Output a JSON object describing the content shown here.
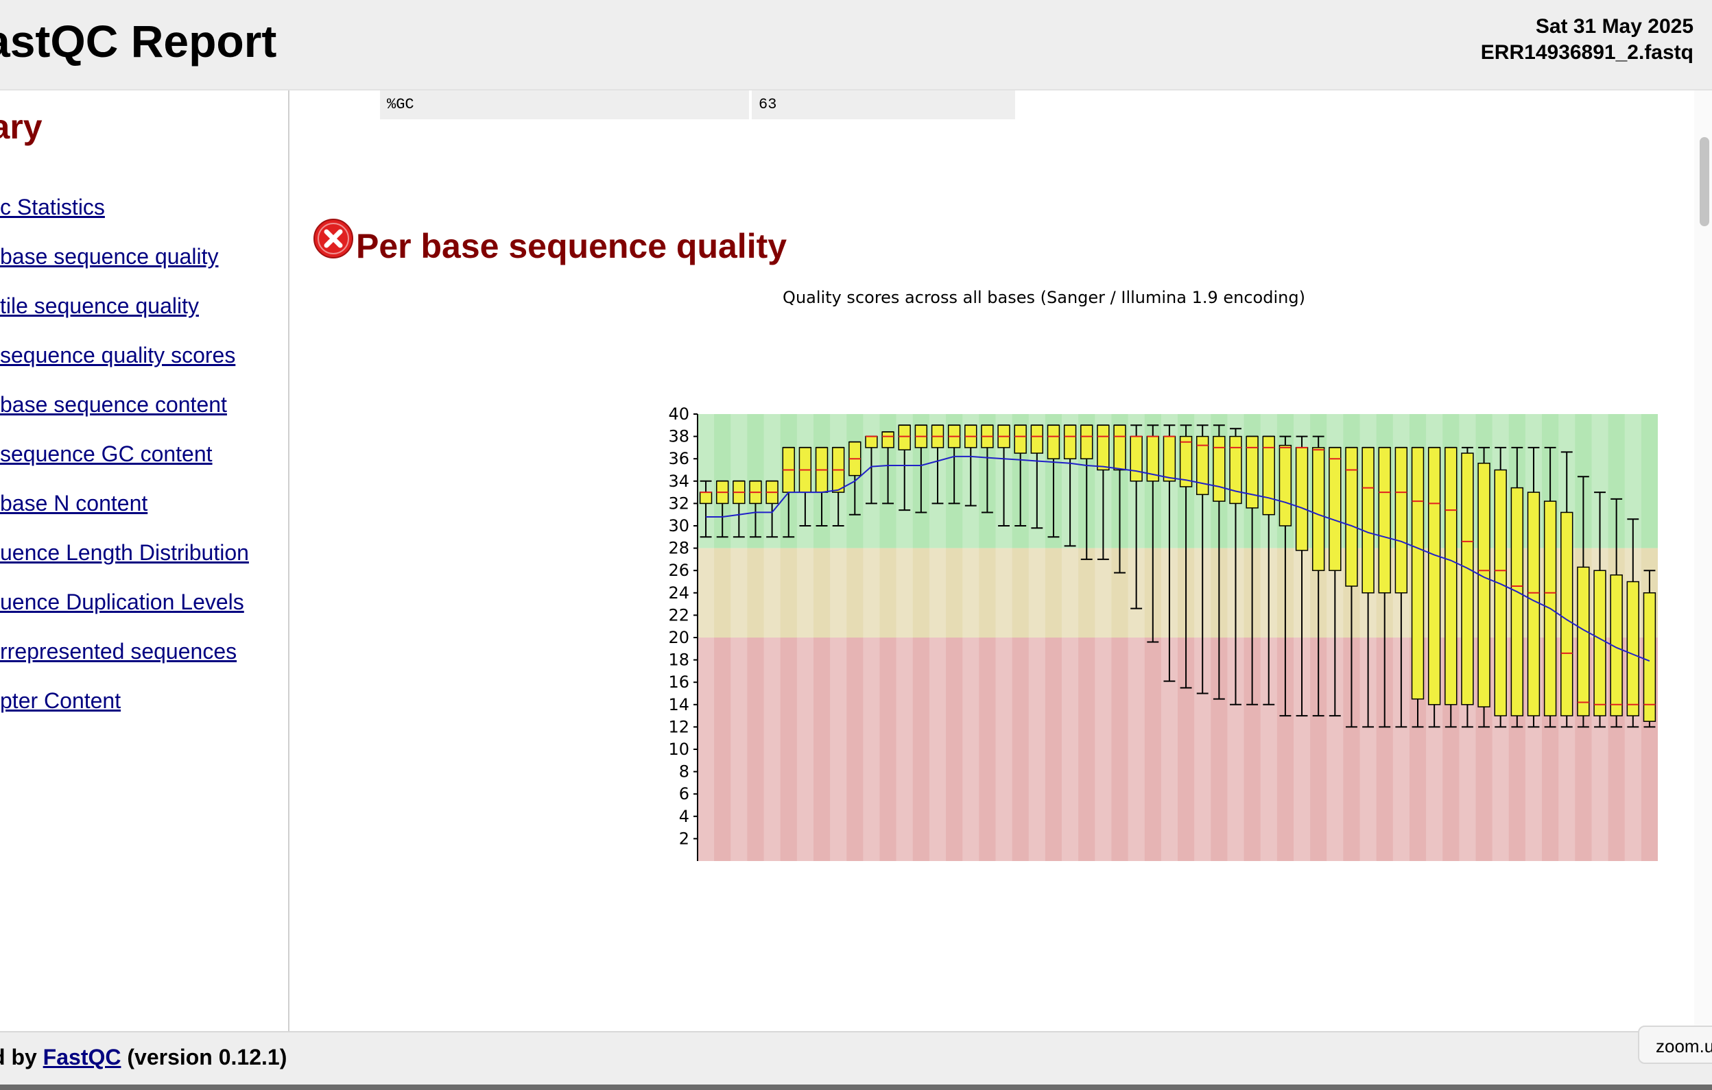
{
  "header": {
    "title": "astQC Report",
    "date": "Sat 31 May 2025",
    "filename": "ERR14936891_2.fastq"
  },
  "sidebar": {
    "heading": "nary",
    "items": [
      {
        "label": "c Statistics"
      },
      {
        "label": "base sequence quality"
      },
      {
        "label": "tile sequence quality"
      },
      {
        "label": "sequence quality scores"
      },
      {
        "label": "base sequence content"
      },
      {
        "label": "sequence GC content"
      },
      {
        "label": "base N content"
      },
      {
        "label": "uence Length Distribution"
      },
      {
        "label": "uence Duplication Levels"
      },
      {
        "label": "rrepresented sequences"
      },
      {
        "label": "pter Content"
      }
    ]
  },
  "stats_row": {
    "label": "%GC",
    "value": "63"
  },
  "section": {
    "title": "Per base sequence quality",
    "status_icon": "fail-icon",
    "status_color": "#e02020"
  },
  "chart_data": {
    "type": "box",
    "title": "Quality scores across all bases (Sanger / Illumina 1.9 encoding)",
    "xlabel": "",
    "ylabel": "",
    "ylim": [
      0,
      40
    ],
    "y_ticks": [
      2,
      4,
      6,
      8,
      10,
      12,
      14,
      16,
      18,
      20,
      22,
      24,
      26,
      28,
      30,
      32,
      34,
      36,
      38,
      40
    ],
    "zones": [
      {
        "from": 28,
        "to": 40,
        "color": "#b4e6b4"
      },
      {
        "from": 20,
        "to": 28,
        "color": "#e6dcb4"
      },
      {
        "from": 0,
        "to": 20,
        "color": "#e6b4b4"
      }
    ],
    "box_color": "#f0f040",
    "median_color": "#e02020",
    "mean_color": "#2020c8",
    "boxes": [
      {
        "low": 29,
        "q1": 32,
        "median": 33,
        "q3": 33,
        "high": 34
      },
      {
        "low": 29,
        "q1": 32,
        "median": 33,
        "q3": 34,
        "high": 34
      },
      {
        "low": 29,
        "q1": 32,
        "median": 33,
        "q3": 34,
        "high": 34
      },
      {
        "low": 29,
        "q1": 32,
        "median": 33,
        "q3": 34,
        "high": 34
      },
      {
        "low": 29,
        "q1": 32,
        "median": 33,
        "q3": 34,
        "high": 34
      },
      {
        "low": 29,
        "q1": 33,
        "median": 35,
        "q3": 37,
        "high": 37
      },
      {
        "low": 30,
        "q1": 33,
        "median": 35,
        "q3": 37,
        "high": 37
      },
      {
        "low": 30,
        "q1": 33,
        "median": 35,
        "q3": 37,
        "high": 37
      },
      {
        "low": 30,
        "q1": 33,
        "median": 35,
        "q3": 37,
        "high": 37
      },
      {
        "low": 31,
        "q1": 34.5,
        "median": 36,
        "q3": 37.5,
        "high": 37.5
      },
      {
        "low": 32,
        "q1": 37,
        "median": 38,
        "q3": 38,
        "high": 38
      },
      {
        "low": 32,
        "q1": 37,
        "median": 38,
        "q3": 38.4,
        "high": 38.4
      },
      {
        "low": 31.4,
        "q1": 36.8,
        "median": 38,
        "q3": 39,
        "high": 39
      },
      {
        "low": 31.2,
        "q1": 37,
        "median": 38,
        "q3": 39,
        "high": 39
      },
      {
        "low": 32,
        "q1": 37,
        "median": 38,
        "q3": 39,
        "high": 39
      },
      {
        "low": 32,
        "q1": 37,
        "median": 38,
        "q3": 39,
        "high": 39
      },
      {
        "low": 31.8,
        "q1": 37,
        "median": 38,
        "q3": 39,
        "high": 39
      },
      {
        "low": 31.2,
        "q1": 37,
        "median": 38,
        "q3": 39,
        "high": 39
      },
      {
        "low": 30,
        "q1": 37,
        "median": 38,
        "q3": 39,
        "high": 39
      },
      {
        "low": 30,
        "q1": 36.5,
        "median": 38,
        "q3": 39,
        "high": 39
      },
      {
        "low": 29.8,
        "q1": 36.5,
        "median": 38,
        "q3": 39,
        "high": 39
      },
      {
        "low": 29,
        "q1": 36,
        "median": 38,
        "q3": 39,
        "high": 39
      },
      {
        "low": 28.2,
        "q1": 36,
        "median": 38,
        "q3": 39,
        "high": 39
      },
      {
        "low": 27,
        "q1": 36,
        "median": 38,
        "q3": 39,
        "high": 39
      },
      {
        "low": 27,
        "q1": 35,
        "median": 38,
        "q3": 39,
        "high": 39
      },
      {
        "low": 25.8,
        "q1": 35,
        "median": 38,
        "q3": 39,
        "high": 39
      },
      {
        "low": 22.6,
        "q1": 34,
        "median": 38,
        "q3": 38,
        "high": 39
      },
      {
        "low": 19.6,
        "q1": 34,
        "median": 38,
        "q3": 38,
        "high": 39
      },
      {
        "low": 16.1,
        "q1": 34,
        "median": 38,
        "q3": 38,
        "high": 39
      },
      {
        "low": 15.5,
        "q1": 33.5,
        "median": 37.5,
        "q3": 38,
        "high": 39
      },
      {
        "low": 15,
        "q1": 32.8,
        "median": 37.2,
        "q3": 38,
        "high": 39
      },
      {
        "low": 14.5,
        "q1": 32.2,
        "median": 37,
        "q3": 38,
        "high": 39
      },
      {
        "low": 14,
        "q1": 32,
        "median": 37,
        "q3": 38,
        "high": 38.7
      },
      {
        "low": 14,
        "q1": 31.6,
        "median": 37,
        "q3": 38,
        "high": 38
      },
      {
        "low": 14,
        "q1": 31,
        "median": 37,
        "q3": 38,
        "high": 38
      },
      {
        "low": 13,
        "q1": 30,
        "median": 37,
        "q3": 37.2,
        "high": 38
      },
      {
        "low": 13,
        "q1": 27.8,
        "median": 37,
        "q3": 37,
        "high": 38
      },
      {
        "low": 13,
        "q1": 26,
        "median": 36.8,
        "q3": 37,
        "high": 38
      },
      {
        "low": 13,
        "q1": 26,
        "median": 36,
        "q3": 37,
        "high": 37
      },
      {
        "low": 12,
        "q1": 24.6,
        "median": 35,
        "q3": 37,
        "high": 37
      },
      {
        "low": 12,
        "q1": 24,
        "median": 33.4,
        "q3": 37,
        "high": 37
      },
      {
        "low": 12,
        "q1": 24,
        "median": 33,
        "q3": 37,
        "high": 37
      },
      {
        "low": 12,
        "q1": 24,
        "median": 33,
        "q3": 37,
        "high": 37
      },
      {
        "low": 12,
        "q1": 14.5,
        "median": 32.2,
        "q3": 37,
        "high": 37
      },
      {
        "low": 12,
        "q1": 14,
        "median": 32,
        "q3": 37,
        "high": 37
      },
      {
        "low": 12,
        "q1": 14,
        "median": 31.4,
        "q3": 37,
        "high": 37
      },
      {
        "low": 12,
        "q1": 14,
        "median": 28.6,
        "q3": 36.5,
        "high": 37
      },
      {
        "low": 12,
        "q1": 13.8,
        "median": 26,
        "q3": 35.6,
        "high": 37
      },
      {
        "low": 12,
        "q1": 13,
        "median": 26,
        "q3": 35,
        "high": 37
      },
      {
        "low": 12,
        "q1": 13,
        "median": 24.6,
        "q3": 33.4,
        "high": 37
      },
      {
        "low": 12,
        "q1": 13,
        "median": 24,
        "q3": 33,
        "high": 37
      },
      {
        "low": 12,
        "q1": 13,
        "median": 24,
        "q3": 32.2,
        "high": 37
      },
      {
        "low": 12,
        "q1": 13,
        "median": 18.6,
        "q3": 31.2,
        "high": 36.6
      },
      {
        "low": 12,
        "q1": 13,
        "median": 14.2,
        "q3": 26.3,
        "high": 34.4
      },
      {
        "low": 12,
        "q1": 13,
        "median": 14,
        "q3": 26,
        "high": 33
      },
      {
        "low": 12,
        "q1": 13,
        "median": 14,
        "q3": 25.6,
        "high": 32.4
      },
      {
        "low": 12,
        "q1": 13,
        "median": 14,
        "q3": 25,
        "high": 30.6
      },
      {
        "low": 12,
        "q1": 12.5,
        "median": 14,
        "q3": 24,
        "high": 26
      }
    ],
    "mean": [
      30.8,
      30.8,
      31,
      31.2,
      31.2,
      33,
      33,
      33,
      33.2,
      34,
      35.3,
      35.4,
      35.4,
      35.4,
      35.8,
      36.2,
      36.2,
      36.1,
      36,
      35.9,
      35.8,
      35.7,
      35.6,
      35.4,
      35.3,
      35.1,
      34.9,
      34.6,
      34.3,
      34.1,
      33.8,
      33.5,
      33.1,
      32.8,
      32.5,
      32.1,
      31.6,
      31,
      30.5,
      30,
      29.4,
      29,
      28.6,
      28,
      27.4,
      26.9,
      26.2,
      25.4,
      24.8,
      24.1,
      23.3,
      22.6,
      21.6,
      20.7,
      19.9,
      19.1,
      18.5,
      17.9
    ]
  },
  "footer": {
    "prefix": "d by ",
    "link": "FastQC",
    "suffix": " (version 0.12.1)"
  },
  "tooltip": {
    "text": "zoom.u"
  }
}
